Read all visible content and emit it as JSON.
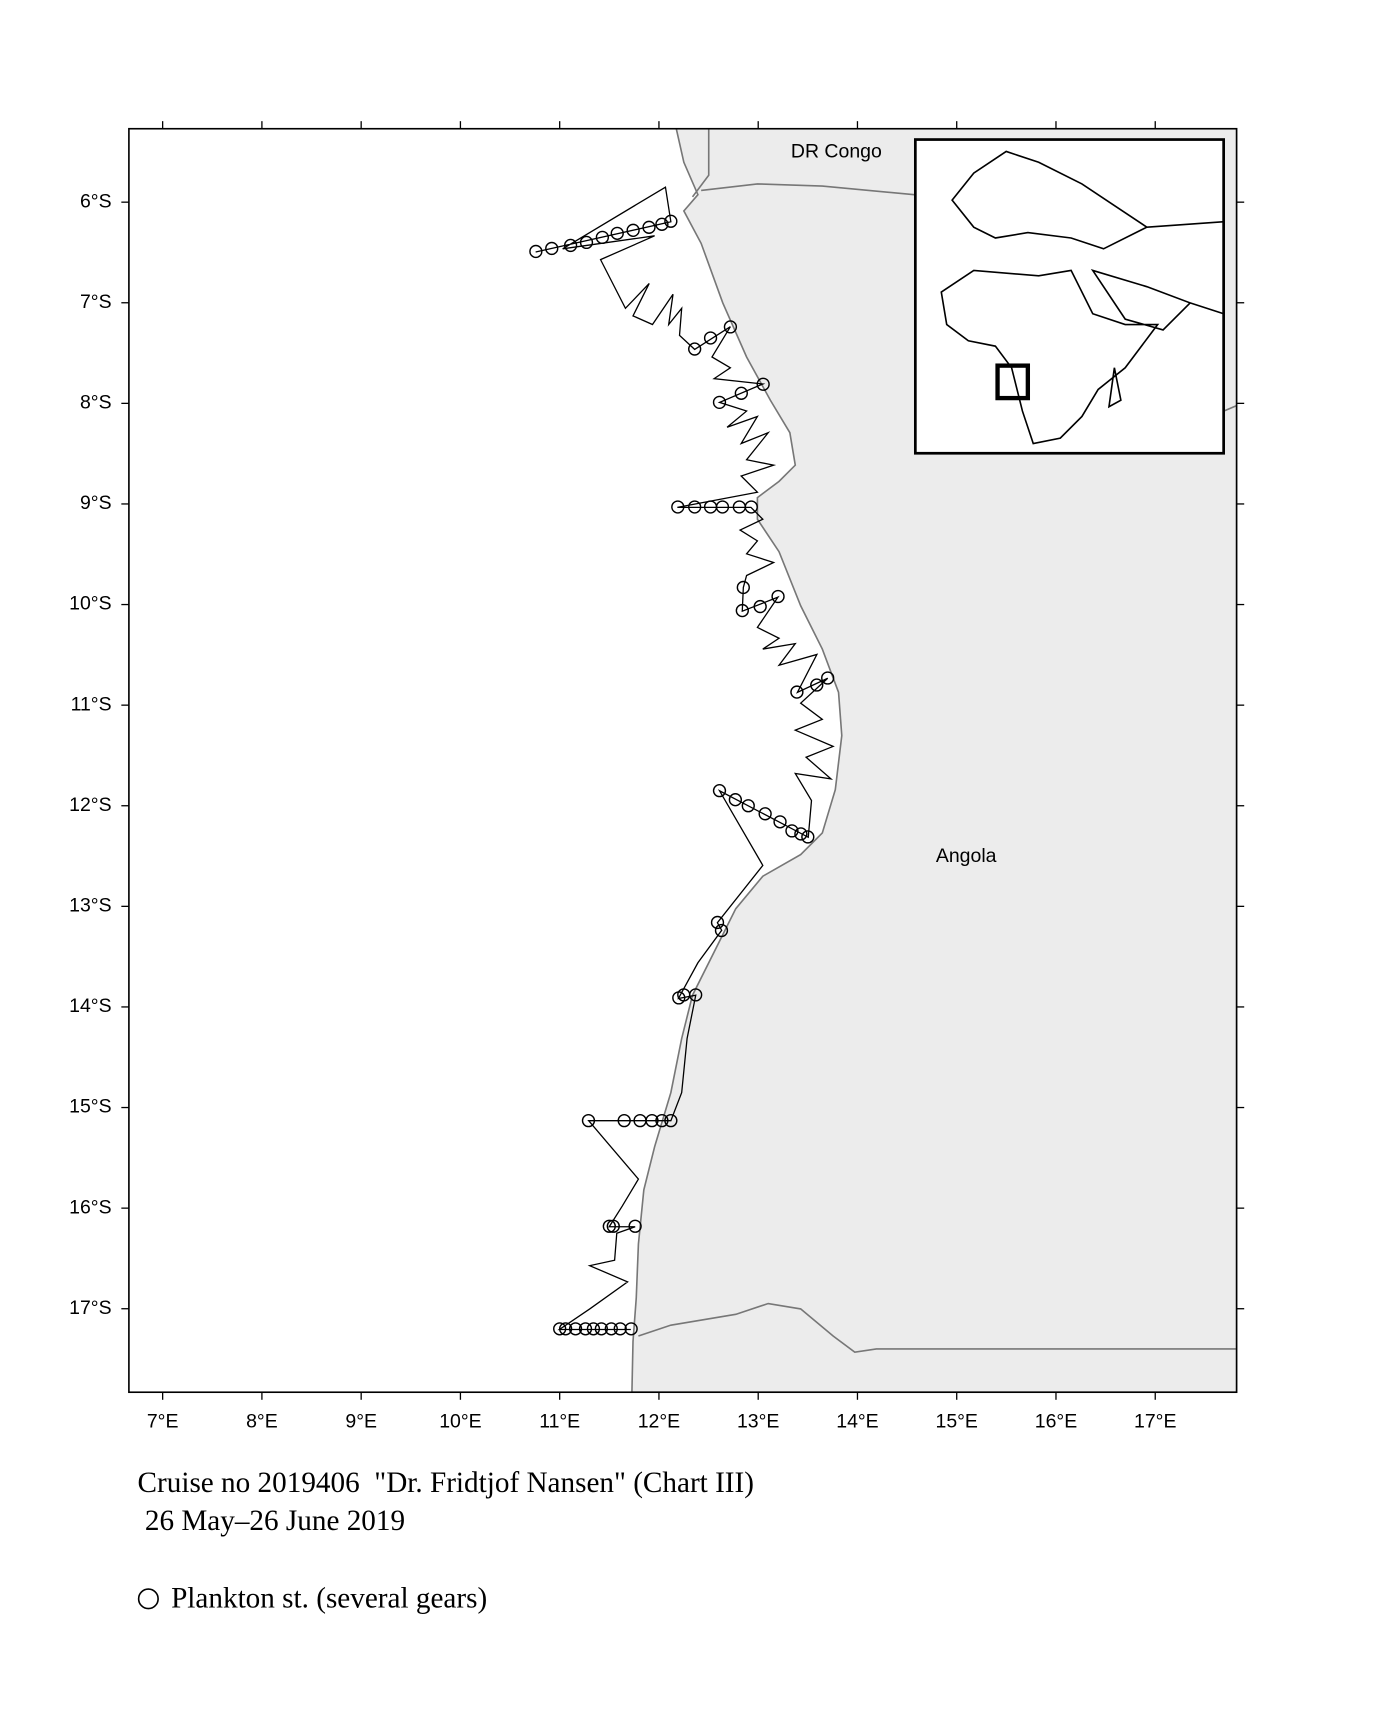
{
  "chart_data": {
    "type": "map",
    "xlim": [
      6.66,
      17.82
    ],
    "ylim": [
      -17.83,
      -5.27
    ],
    "xticks": [
      {
        "value": 7,
        "label": "7°E"
      },
      {
        "value": 8,
        "label": "8°E"
      },
      {
        "value": 9,
        "label": "9°E"
      },
      {
        "value": 10,
        "label": "10°E"
      },
      {
        "value": 11,
        "label": "11°E"
      },
      {
        "value": 12,
        "label": "12°E"
      },
      {
        "value": 13,
        "label": "13°E"
      },
      {
        "value": 14,
        "label": "14°E"
      },
      {
        "value": 15,
        "label": "15°E"
      },
      {
        "value": 16,
        "label": "16°E"
      },
      {
        "value": 17,
        "label": "17°E"
      }
    ],
    "yticks": [
      {
        "value": -6,
        "label": "6°S"
      },
      {
        "value": -7,
        "label": "7°S"
      },
      {
        "value": -8,
        "label": "8°S"
      },
      {
        "value": -9,
        "label": "9°S"
      },
      {
        "value": -10,
        "label": "10°S"
      },
      {
        "value": -11,
        "label": "11°S"
      },
      {
        "value": -12,
        "label": "12°S"
      },
      {
        "value": -13,
        "label": "13°S"
      },
      {
        "value": -14,
        "label": "14°S"
      },
      {
        "value": -15,
        "label": "15°S"
      },
      {
        "value": -16,
        "label": "16°S"
      },
      {
        "value": -17,
        "label": "17°S"
      }
    ],
    "annotations": [
      "DR Congo",
      "Angola"
    ],
    "caption": [
      "Cruise no 2019406  \"Dr. Fridtjof Nansen\" (Chart III)",
      " 26 May–26 June 2019"
    ],
    "series": [
      {
        "name": "Plankton st. (several gears)",
        "color": "#000000",
        "x": [
          10.76,
          10.92,
          11.11,
          11.27,
          11.43,
          11.58,
          11.74,
          11.9,
          12.03,
          12.12,
          12.36,
          12.52,
          12.72,
          12.61,
          12.83,
          13.05,
          12.19,
          12.36,
          12.52,
          12.64,
          12.81,
          12.93,
          12.85,
          12.84,
          13.02,
          13.2,
          13.39,
          13.59,
          13.7,
          12.61,
          12.77,
          12.9,
          13.07,
          13.22,
          13.34,
          13.43,
          13.5,
          12.59,
          12.63,
          12.2,
          12.25,
          12.37,
          11.29,
          11.65,
          11.81,
          11.93,
          12.03,
          12.12,
          11.5,
          11.54,
          11.76,
          11.0,
          11.06,
          11.16,
          11.26,
          11.34,
          11.42,
          11.52,
          11.61,
          11.72
        ],
        "y": [
          -6.49,
          -6.46,
          -6.43,
          -6.4,
          -6.35,
          -6.31,
          -6.28,
          -6.25,
          -6.22,
          -6.19,
          -7.46,
          -7.35,
          -7.24,
          -7.99,
          -7.9,
          -7.81,
          -9.03,
          -9.03,
          -9.03,
          -9.03,
          -9.03,
          -9.03,
          -9.83,
          -10.06,
          -10.02,
          -9.92,
          -10.87,
          -10.8,
          -10.73,
          -11.85,
          -11.94,
          -12.0,
          -12.08,
          -12.16,
          -12.25,
          -12.28,
          -12.31,
          -13.16,
          -13.24,
          -13.91,
          -13.88,
          -13.88,
          -15.13,
          -15.13,
          -15.13,
          -15.13,
          -15.13,
          -15.13,
          -16.18,
          -16.18,
          -16.18,
          -17.2,
          -17.2,
          -17.2,
          -17.2,
          -17.2,
          -17.2,
          -17.2,
          -17.2,
          -17.2
        ]
      }
    ]
  }
}
